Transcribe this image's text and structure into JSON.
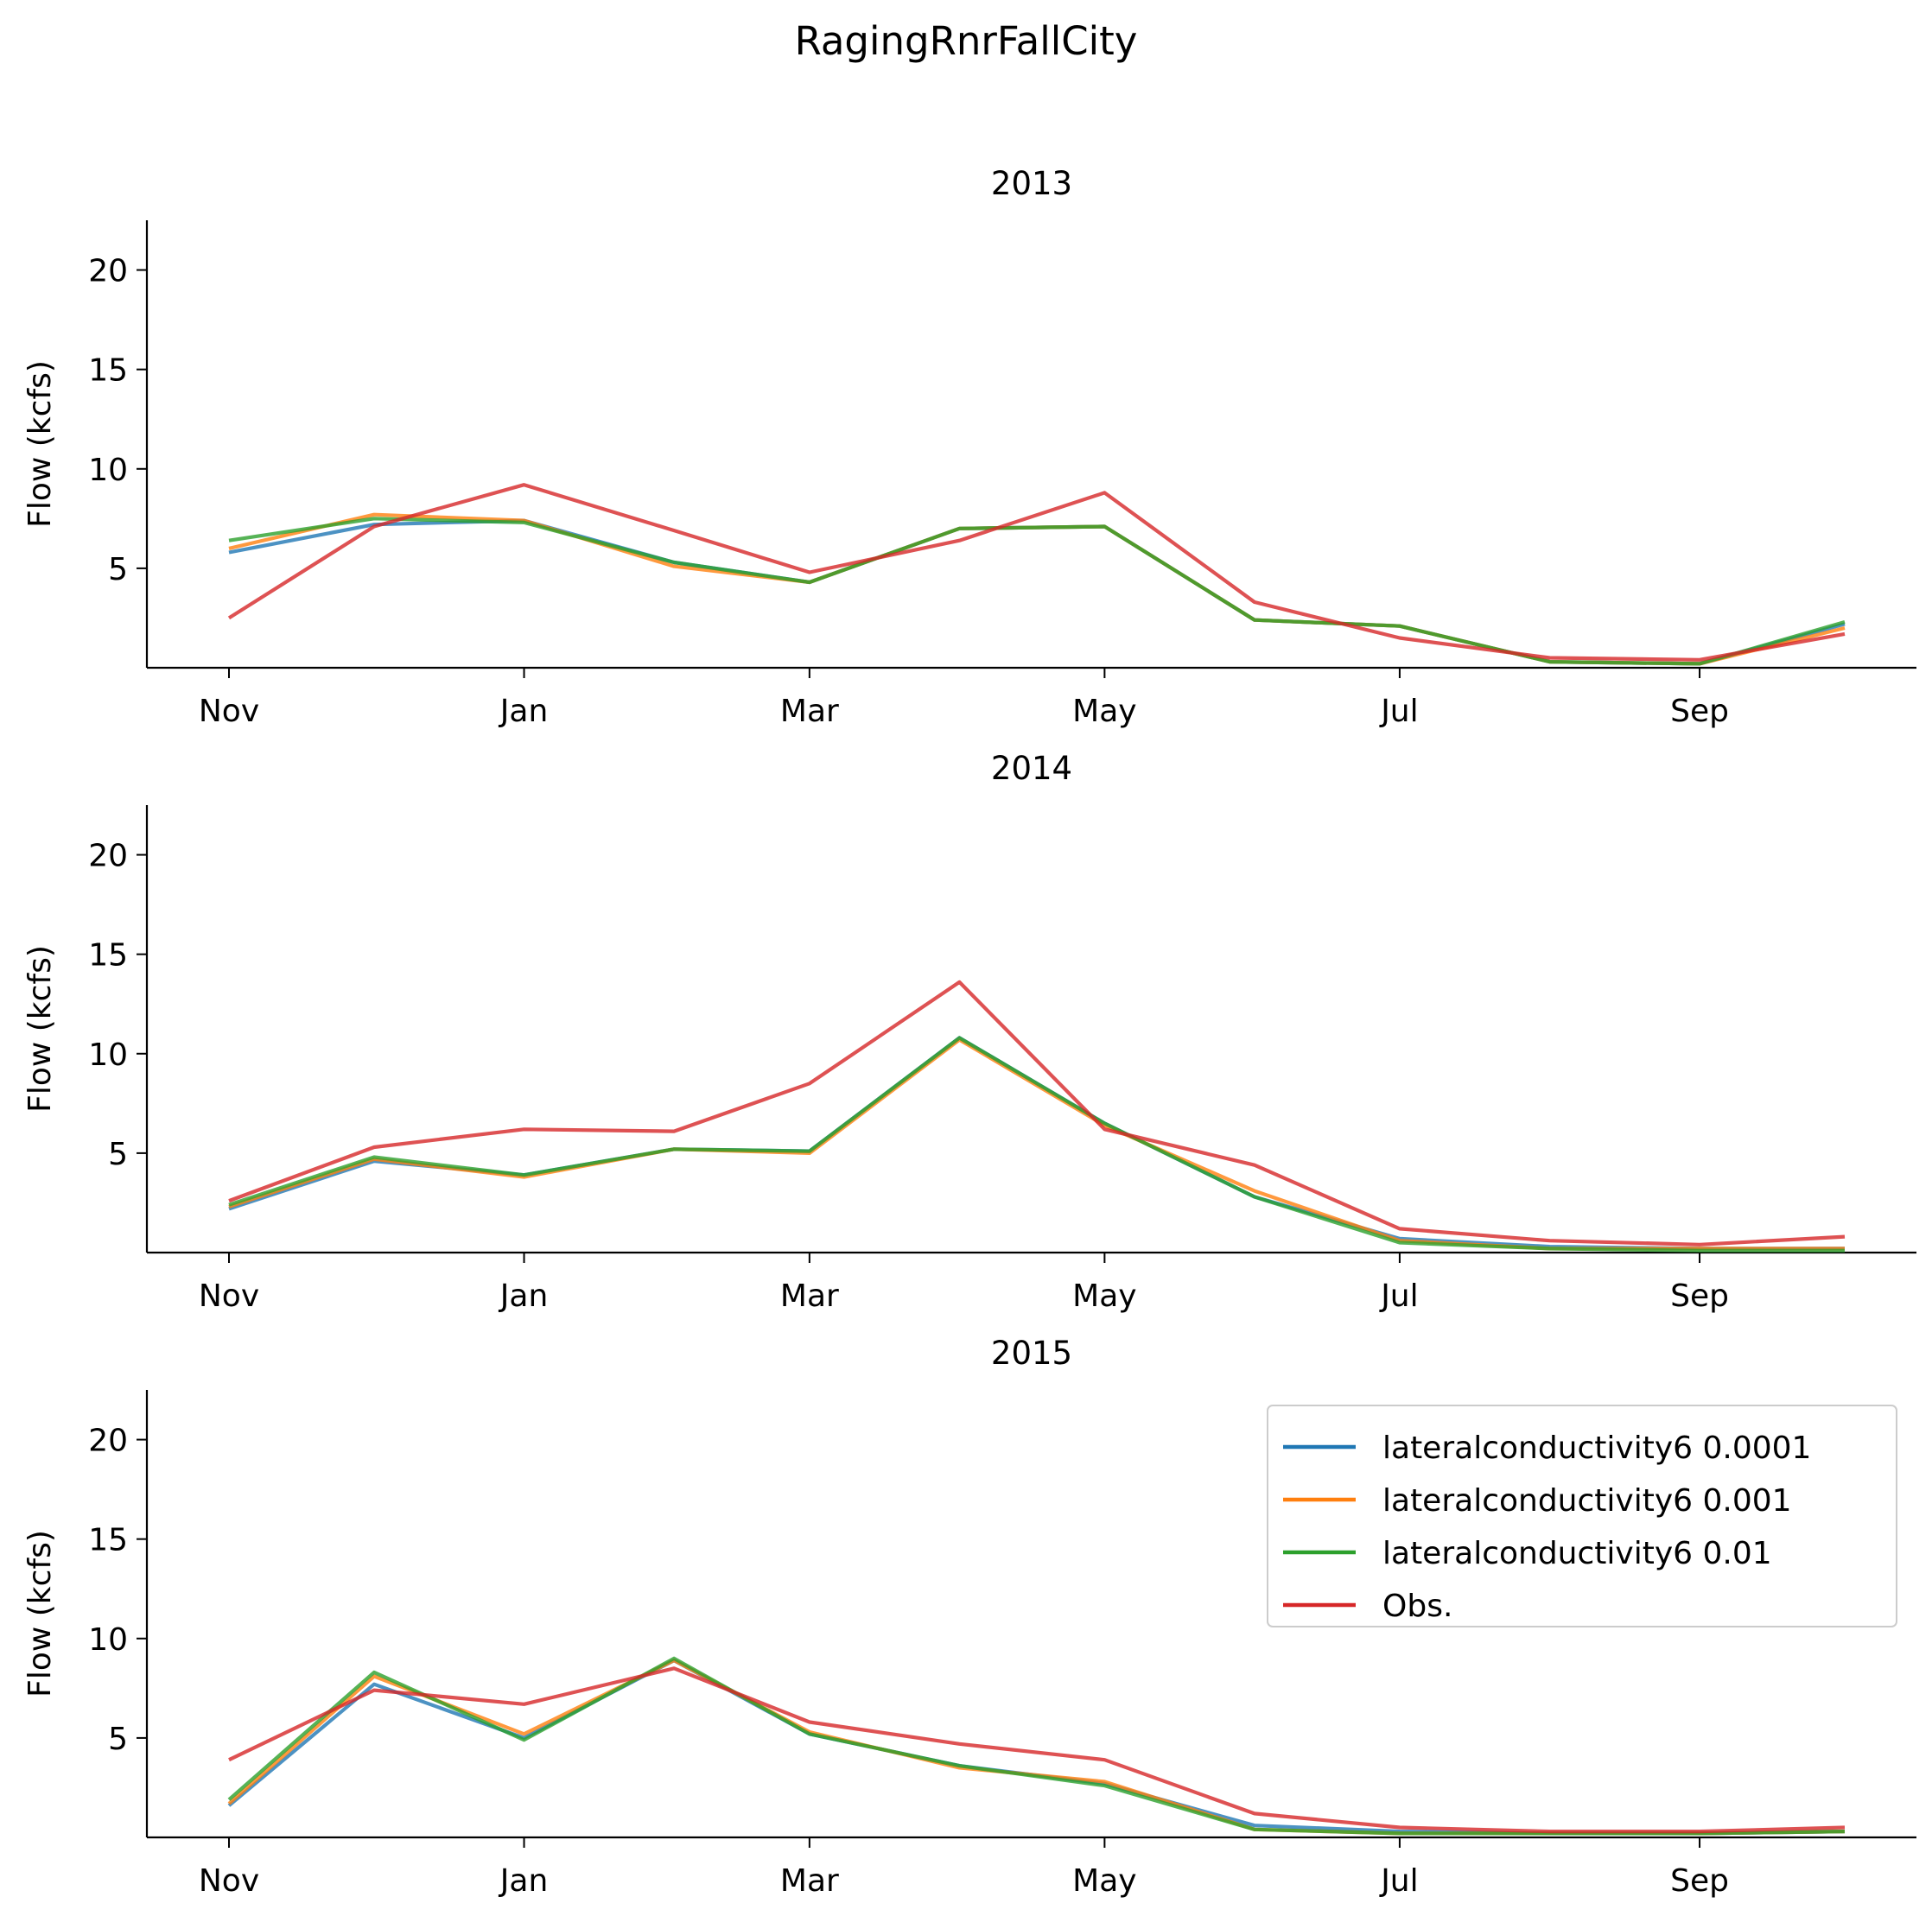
{
  "figure": {
    "suptitle": "RagingRnrFallCity"
  },
  "colors": {
    "s1": "#1f77b4",
    "s2": "#ff7f0e",
    "s3": "#2ca02c",
    "s4": "#d62728"
  },
  "chart_data": [
    {
      "type": "line",
      "title": "2013",
      "xlabel": "",
      "ylabel": "Flow (kcfs)",
      "x_tick_labels": [
        "Nov",
        "Jan",
        "Mar",
        "May",
        "Jul",
        "Sep"
      ],
      "x": [
        "2012-11-01",
        "2012-12-01",
        "2013-01-01",
        "2013-02-01",
        "2013-03-01",
        "2013-04-01",
        "2013-05-01",
        "2013-06-01",
        "2013-07-01",
        "2013-08-01",
        "2013-09-01",
        "2013-10-01"
      ],
      "ylim": [
        0,
        22.5
      ],
      "yticks": [
        5,
        10,
        15,
        20
      ],
      "series": [
        {
          "name": "lateralconductivity6 0.0001",
          "color": "#1f77b4",
          "values": [
            5.8,
            7.2,
            7.4,
            5.3,
            4.3,
            7.0,
            7.1,
            2.4,
            2.1,
            0.3,
            0.2,
            2.2
          ]
        },
        {
          "name": "lateralconductivity6 0.001",
          "color": "#ff7f0e",
          "values": [
            6.0,
            7.7,
            7.4,
            5.1,
            4.3,
            7.0,
            7.1,
            2.4,
            2.1,
            0.3,
            0.2,
            2.0
          ]
        },
        {
          "name": "lateralconductivity6 0.01",
          "color": "#2ca02c",
          "values": [
            6.4,
            7.5,
            7.3,
            5.3,
            4.3,
            7.0,
            7.1,
            2.4,
            2.1,
            0.3,
            0.2,
            2.3
          ]
        },
        {
          "name": "Obs.",
          "color": "#d62728",
          "values": [
            2.5,
            7.1,
            9.2,
            6.9,
            4.8,
            6.4,
            8.8,
            3.3,
            1.5,
            0.5,
            0.4,
            1.7
          ]
        }
      ]
    },
    {
      "type": "line",
      "title": "2014",
      "xlabel": "",
      "ylabel": "Flow (kcfs)",
      "x_tick_labels": [
        "Nov",
        "Jan",
        "Mar",
        "May",
        "Jul",
        "Sep"
      ],
      "x": [
        "2013-11-01",
        "2013-12-01",
        "2014-01-01",
        "2014-02-01",
        "2014-03-01",
        "2014-04-01",
        "2014-05-01",
        "2014-06-01",
        "2014-07-01",
        "2014-08-01",
        "2014-09-01",
        "2014-10-01"
      ],
      "ylim": [
        0,
        22.5
      ],
      "yticks": [
        5,
        10,
        15,
        20
      ],
      "series": [
        {
          "name": "lateralconductivity6 0.0001",
          "color": "#1f77b4",
          "values": [
            2.2,
            4.6,
            3.9,
            5.2,
            5.1,
            10.8,
            6.5,
            2.8,
            0.7,
            0.3,
            0.2,
            0.2
          ]
        },
        {
          "name": "lateralconductivity6 0.001",
          "color": "#ff7f0e",
          "values": [
            2.3,
            4.7,
            3.8,
            5.2,
            5.0,
            10.7,
            6.4,
            3.1,
            0.6,
            0.2,
            0.2,
            0.2
          ]
        },
        {
          "name": "lateralconductivity6 0.01",
          "color": "#2ca02c",
          "values": [
            2.4,
            4.8,
            3.9,
            5.2,
            5.1,
            10.8,
            6.5,
            2.8,
            0.5,
            0.2,
            0.1,
            0.1
          ]
        },
        {
          "name": "Obs.",
          "color": "#d62728",
          "values": [
            2.6,
            5.3,
            6.2,
            6.1,
            8.5,
            13.6,
            6.2,
            4.4,
            1.2,
            0.6,
            0.4,
            0.8
          ]
        }
      ]
    },
    {
      "type": "line",
      "title": "2015",
      "xlabel": "",
      "ylabel": "Flow (kcfs)",
      "x_tick_labels": [
        "Nov",
        "Jan",
        "Mar",
        "May",
        "Jul",
        "Sep"
      ],
      "x": [
        "2014-11-01",
        "2014-12-01",
        "2015-01-01",
        "2015-02-01",
        "2015-03-01",
        "2015-04-01",
        "2015-05-01",
        "2015-06-01",
        "2015-07-01",
        "2015-08-01",
        "2015-09-01",
        "2015-10-01"
      ],
      "ylim": [
        0,
        22.5
      ],
      "yticks": [
        5,
        10,
        15,
        20
      ],
      "legend_position": "upper right",
      "series": [
        {
          "name": "lateralconductivity6 0.0001",
          "color": "#1f77b4",
          "values": [
            1.6,
            7.7,
            5.0,
            8.9,
            5.2,
            3.6,
            2.7,
            0.6,
            0.3,
            0.2,
            0.2,
            0.3
          ]
        },
        {
          "name": "lateralconductivity6 0.001",
          "color": "#ff7f0e",
          "values": [
            1.7,
            8.1,
            5.2,
            8.9,
            5.3,
            3.5,
            2.8,
            0.4,
            0.2,
            0.2,
            0.2,
            0.3
          ]
        },
        {
          "name": "lateralconductivity6 0.01",
          "color": "#2ca02c",
          "values": [
            1.9,
            8.3,
            4.9,
            9.0,
            5.2,
            3.6,
            2.6,
            0.4,
            0.2,
            0.2,
            0.2,
            0.3
          ]
        },
        {
          "name": "Obs.",
          "color": "#d62728",
          "values": [
            3.9,
            7.4,
            6.7,
            8.5,
            5.8,
            4.7,
            3.9,
            1.2,
            0.5,
            0.3,
            0.3,
            0.5
          ]
        }
      ]
    }
  ]
}
